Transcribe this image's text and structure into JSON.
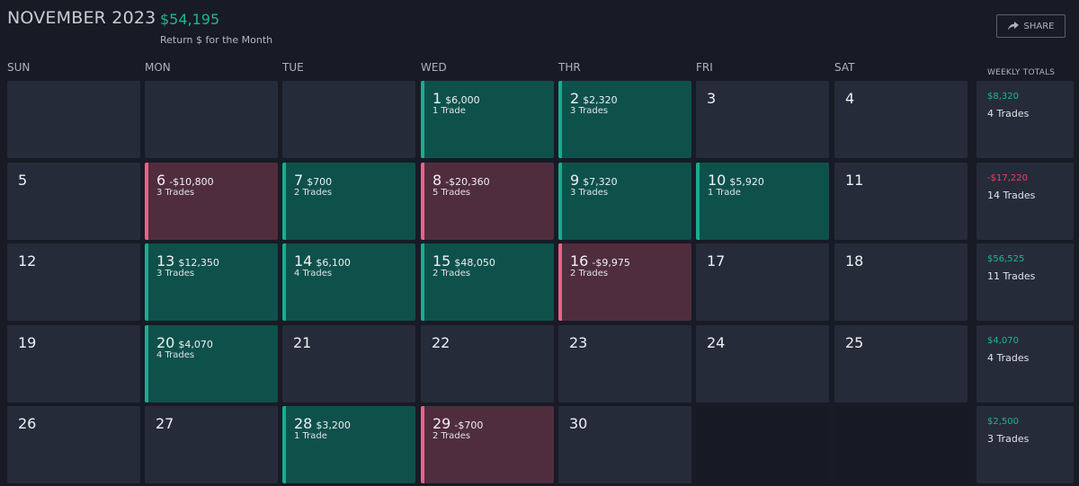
{
  "header": {
    "month": "NOVEMBER 2023",
    "return_value": "$54,195",
    "return_label": "Return $ for the Month"
  },
  "share": {
    "label": "SHARE",
    "icon": "share-arrow-icon"
  },
  "days_of_week": [
    "SUN",
    "MON",
    "TUE",
    "WED",
    "THR",
    "FRI",
    "SAT"
  ],
  "weekly_totals_title": "WEEKLY TOTALS",
  "colors": {
    "win_bg": "#0e514b",
    "win_accent": "#17ad8f",
    "loss_bg": "#502d3d",
    "loss_accent": "#ef5f89",
    "neutral_bg": "#262b3a",
    "positive_text": "#1fb591",
    "negative_text": "#ef3e5c"
  },
  "weeks": [
    {
      "days": [
        {
          "day": "",
          "pnl": "",
          "trades": "",
          "status": "neutral"
        },
        {
          "day": "",
          "pnl": "",
          "trades": "",
          "status": "neutral"
        },
        {
          "day": "",
          "pnl": "",
          "trades": "",
          "status": "neutral"
        },
        {
          "day": "1",
          "pnl": "$6,000",
          "trades": "1 Trade",
          "status": "win"
        },
        {
          "day": "2",
          "pnl": "$2,320",
          "trades": "3 Trades",
          "status": "win"
        },
        {
          "day": "3",
          "pnl": "",
          "trades": "",
          "status": "neutral"
        },
        {
          "day": "4",
          "pnl": "",
          "trades": "",
          "status": "neutral"
        }
      ],
      "total": {
        "pnl": "$8,320",
        "trades": "4 Trades",
        "status": "positive"
      }
    },
    {
      "days": [
        {
          "day": "5",
          "pnl": "",
          "trades": "",
          "status": "neutral"
        },
        {
          "day": "6",
          "pnl": "-$10,800",
          "trades": "3 Trades",
          "status": "loss"
        },
        {
          "day": "7",
          "pnl": "$700",
          "trades": "2 Trades",
          "status": "win"
        },
        {
          "day": "8",
          "pnl": "-$20,360",
          "trades": "5 Trades",
          "status": "loss"
        },
        {
          "day": "9",
          "pnl": "$7,320",
          "trades": "3 Trades",
          "status": "win"
        },
        {
          "day": "10",
          "pnl": "$5,920",
          "trades": "1 Trade",
          "status": "win"
        },
        {
          "day": "11",
          "pnl": "",
          "trades": "",
          "status": "neutral"
        }
      ],
      "total": {
        "pnl": "-$17,220",
        "trades": "14 Trades",
        "status": "negative"
      }
    },
    {
      "days": [
        {
          "day": "12",
          "pnl": "",
          "trades": "",
          "status": "neutral"
        },
        {
          "day": "13",
          "pnl": "$12,350",
          "trades": "3 Trades",
          "status": "win"
        },
        {
          "day": "14",
          "pnl": "$6,100",
          "trades": "4 Trades",
          "status": "win"
        },
        {
          "day": "15",
          "pnl": "$48,050",
          "trades": "2 Trades",
          "status": "win"
        },
        {
          "day": "16",
          "pnl": "-$9,975",
          "trades": "2 Trades",
          "status": "loss"
        },
        {
          "day": "17",
          "pnl": "",
          "trades": "",
          "status": "neutral"
        },
        {
          "day": "18",
          "pnl": "",
          "trades": "",
          "status": "neutral"
        }
      ],
      "total": {
        "pnl": "$56,525",
        "trades": "11 Trades",
        "status": "positive"
      }
    },
    {
      "days": [
        {
          "day": "19",
          "pnl": "",
          "trades": "",
          "status": "neutral"
        },
        {
          "day": "20",
          "pnl": "$4,070",
          "trades": "4 Trades",
          "status": "win"
        },
        {
          "day": "21",
          "pnl": "",
          "trades": "",
          "status": "neutral"
        },
        {
          "day": "22",
          "pnl": "",
          "trades": "",
          "status": "neutral"
        },
        {
          "day": "23",
          "pnl": "",
          "trades": "",
          "status": "neutral"
        },
        {
          "day": "24",
          "pnl": "",
          "trades": "",
          "status": "neutral"
        },
        {
          "day": "25",
          "pnl": "",
          "trades": "",
          "status": "neutral"
        }
      ],
      "total": {
        "pnl": "$4,070",
        "trades": "4 Trades",
        "status": "positive"
      }
    },
    {
      "days": [
        {
          "day": "26",
          "pnl": "",
          "trades": "",
          "status": "neutral"
        },
        {
          "day": "27",
          "pnl": "",
          "trades": "",
          "status": "neutral"
        },
        {
          "day": "28",
          "pnl": "$3,200",
          "trades": "1 Trade",
          "status": "win"
        },
        {
          "day": "29",
          "pnl": "-$700",
          "trades": "2 Trades",
          "status": "loss"
        },
        {
          "day": "30",
          "pnl": "",
          "trades": "",
          "status": "neutral"
        },
        {
          "day": "",
          "pnl": "",
          "trades": "",
          "status": "empty"
        },
        {
          "day": "",
          "pnl": "",
          "trades": "",
          "status": "empty"
        }
      ],
      "total": {
        "pnl": "$2,500",
        "trades": "3 Trades",
        "status": "positive"
      }
    }
  ]
}
